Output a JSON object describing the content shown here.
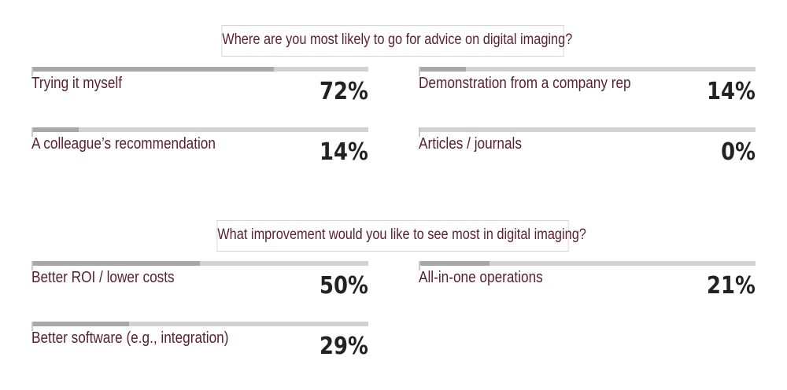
{
  "colors": {
    "label": "#5a1f2e",
    "value": "#222222",
    "track": "#d2d2d2",
    "fill": "#a8a8a8"
  },
  "chart_data": [
    {
      "type": "bar",
      "title": "Where are you most likely to go for advice on digital imaging?",
      "categories": [
        "Trying it myself",
        "Demonstration from a company rep",
        "A colleague’s recommendation",
        "Articles / journals"
      ],
      "values": [
        72,
        14,
        14,
        0
      ],
      "value_labels": [
        "72%",
        "14%",
        "14%",
        "0%"
      ],
      "ylim": [
        0,
        100
      ]
    },
    {
      "type": "bar",
      "title": "What improvement would you like to see most in digital imaging?",
      "categories": [
        "Better ROI / lower costs",
        "All-in-one operations",
        "Better software (e.g., integration)"
      ],
      "values": [
        50,
        21,
        29
      ],
      "value_labels": [
        "50%",
        "21%",
        "29%"
      ],
      "ylim": [
        0,
        100
      ]
    }
  ]
}
